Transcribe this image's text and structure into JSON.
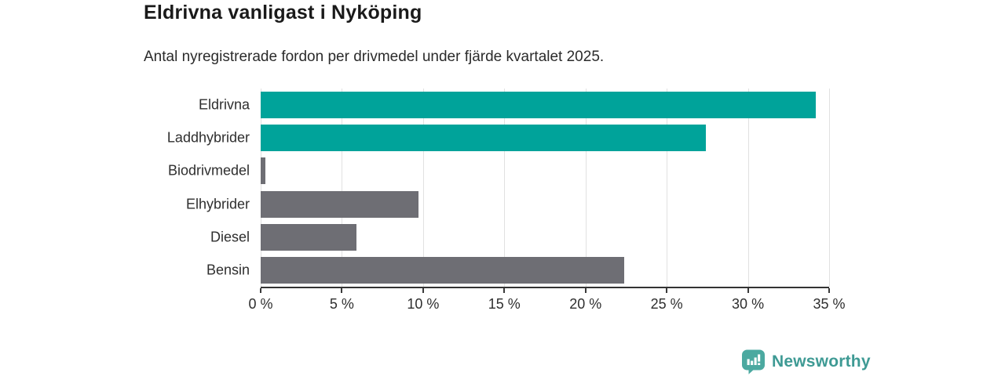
{
  "header": {
    "title": "Eldrivna vanligast i Nyköping",
    "subtitle": "Antal nyregistrerade fordon per drivmedel under fjärde kvartalet 2025."
  },
  "chart_data": {
    "type": "bar",
    "orientation": "horizontal",
    "title": "Eldrivna vanligast i Nyköping",
    "subtitle": "Antal nyregistrerade fordon per drivmedel under fjärde kvartalet 2025.",
    "categories": [
      "Eldrivna",
      "Laddhybrider",
      "Biodrivmedel",
      "Elhybrider",
      "Diesel",
      "Bensin"
    ],
    "values": [
      34.2,
      27.4,
      0.3,
      9.7,
      5.9,
      22.4
    ],
    "unit": "%",
    "bar_colors": [
      "#00A39A",
      "#00A39A",
      "#6E6E74",
      "#6E6E74",
      "#6E6E74",
      "#6E6E74"
    ],
    "xlabel": "",
    "ylabel": "",
    "xlim": [
      0,
      35
    ],
    "x_ticks": [
      0,
      5,
      10,
      15,
      20,
      25,
      30,
      35
    ],
    "x_tick_labels": [
      "0 %",
      "5 %",
      "10 %",
      "15 %",
      "20 %",
      "25 %",
      "30 %",
      "35 %"
    ],
    "grid": true,
    "legend": false
  },
  "footer": {
    "brand": "Newsworthy",
    "logo_icon": "bar-chart-speech-bubble-icon"
  },
  "colors": {
    "accent_teal": "#00A39A",
    "bar_gray": "#6E6E74",
    "gridline": "#E1E1E1",
    "axis": "#333333",
    "tick": "#3A3A3A",
    "title_text": "#1A1A1A",
    "body_text": "#2E2E2E",
    "logo_badge": "#4BA9A0",
    "logo_text": "#3E9A94"
  }
}
